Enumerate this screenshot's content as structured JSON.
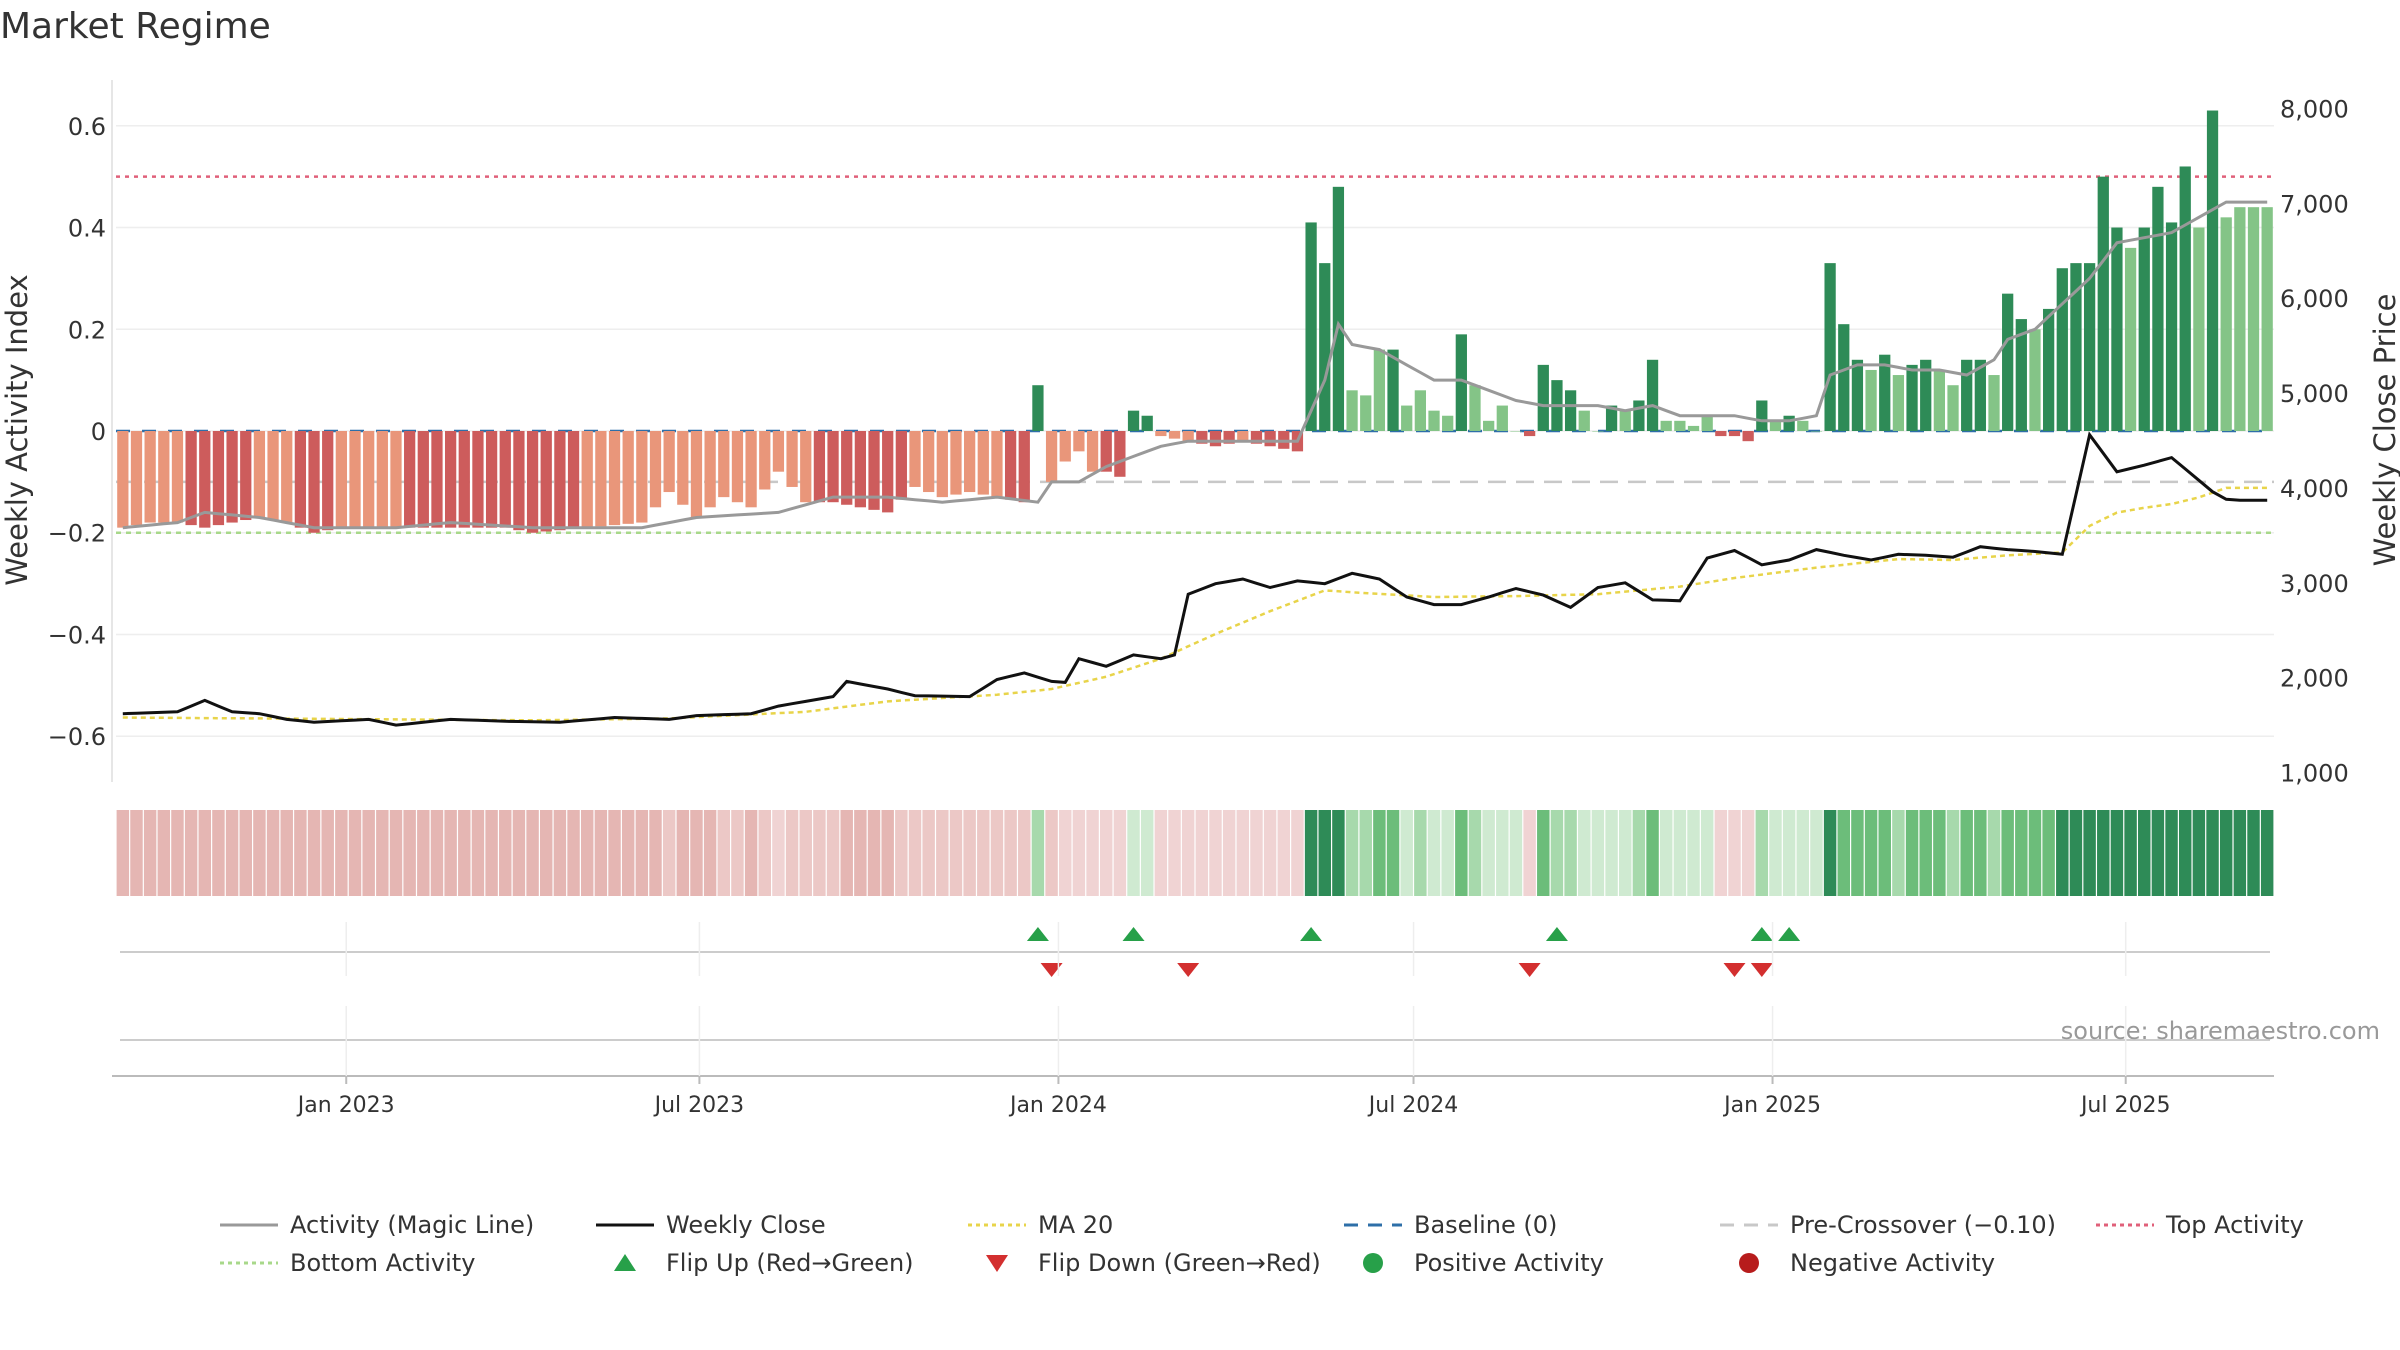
{
  "chart_data": {
    "type": "bar",
    "title": "Market Regime",
    "ylabel_left": "Weekly Activity Index",
    "ylabel_right": "Weekly Close Price",
    "source": "source: sharemaestro.com",
    "left_axis": {
      "ylim": [
        -0.69,
        0.69
      ],
      "ticks": [
        {
          "v": 0.6,
          "label": "0.6"
        },
        {
          "v": 0.4,
          "label": "0.4"
        },
        {
          "v": 0.2,
          "label": "0.2"
        },
        {
          "v": 0,
          "label": "0"
        },
        {
          "v": -0.2,
          "label": "−0.2"
        },
        {
          "v": -0.4,
          "label": "−0.4"
        },
        {
          "v": -0.6,
          "label": "−0.6"
        }
      ]
    },
    "right_axis": {
      "ylim": [
        900,
        8300
      ],
      "ticks": [
        {
          "v": 8000,
          "label": "8,000"
        },
        {
          "v": 7000,
          "label": "7,000"
        },
        {
          "v": 6000,
          "label": "6,000"
        },
        {
          "v": 5000,
          "label": "5,000"
        },
        {
          "v": 4000,
          "label": "4,000"
        },
        {
          "v": 3000,
          "label": "3,000"
        },
        {
          "v": 2000,
          "label": "2,000"
        },
        {
          "v": 1000,
          "label": "1,000"
        }
      ]
    },
    "x_range": [
      "2022-09-05",
      "2025-09-15"
    ],
    "x_ticks": [
      {
        "date": "2023-01-01",
        "label": "Jan 2023"
      },
      {
        "date": "2023-07-01",
        "label": "Jul 2023"
      },
      {
        "date": "2024-01-01",
        "label": "Jan 2024"
      },
      {
        "date": "2024-07-01",
        "label": "Jul 2024"
      },
      {
        "date": "2025-01-01",
        "label": "Jan 2025"
      },
      {
        "date": "2025-07-01",
        "label": "Jul 2025"
      }
    ],
    "reference_lines": [
      {
        "name": "Top Activity",
        "value": 0.5,
        "color": "#e0607a",
        "dash": "4 5"
      },
      {
        "name": "Pre-Crossover (−0.10)",
        "value": -0.1,
        "color": "#c8c8c8",
        "dash": "18 10"
      },
      {
        "name": "Bottom Activity",
        "value": -0.2,
        "color": "#a8d88a",
        "dash": "5 5"
      },
      {
        "name": "Baseline (0)",
        "value": 0,
        "color": "#2e6fa8",
        "dash": "14 12"
      }
    ],
    "colors": {
      "pos_strong": "#2e8b57",
      "pos_weak": "#84c487",
      "neg_strong": "#cd5c5c",
      "neg_weak": "#e9967a",
      "magic": "#999999",
      "close": "#111111",
      "ma": "#e8d44a",
      "flip_up": "#27a049",
      "flip_down": "#d32f2f"
    },
    "weeks": 158,
    "activity": {
      "keyframes": [
        [
          0,
          -0.19
        ],
        [
          2,
          -0.18
        ],
        [
          4,
          -0.18
        ],
        [
          6,
          -0.19
        ],
        [
          8,
          -0.18
        ],
        [
          10,
          -0.17
        ],
        [
          12,
          -0.18
        ],
        [
          14,
          -0.2
        ],
        [
          16,
          -0.19
        ],
        [
          20,
          -0.19
        ],
        [
          24,
          -0.19
        ],
        [
          28,
          -0.19
        ],
        [
          30,
          -0.2
        ],
        [
          34,
          -0.19
        ],
        [
          38,
          -0.18
        ],
        [
          40,
          -0.12
        ],
        [
          42,
          -0.17
        ],
        [
          44,
          -0.13
        ],
        [
          46,
          -0.15
        ],
        [
          48,
          -0.08
        ],
        [
          50,
          -0.14
        ],
        [
          52,
          -0.14
        ],
        [
          54,
          -0.15
        ],
        [
          56,
          -0.16
        ],
        [
          58,
          -0.11
        ],
        [
          60,
          -0.13
        ],
        [
          62,
          -0.12
        ],
        [
          64,
          -0.13
        ],
        [
          66,
          -0.14
        ],
        [
          67,
          0.09
        ],
        [
          68,
          -0.1
        ],
        [
          69,
          -0.06
        ],
        [
          70,
          -0.04
        ],
        [
          71,
          -0.08
        ],
        [
          72,
          -0.08
        ],
        [
          73,
          -0.09
        ],
        [
          74,
          0.04
        ],
        [
          75,
          0.03
        ],
        [
          76,
          -0.01
        ],
        [
          78,
          -0.02
        ],
        [
          80,
          -0.03
        ],
        [
          82,
          -0.02
        ],
        [
          84,
          -0.03
        ],
        [
          86,
          -0.04
        ],
        [
          87,
          0.41
        ],
        [
          88,
          0.33
        ],
        [
          89,
          0.48
        ],
        [
          90,
          0.08
        ],
        [
          91,
          0.07
        ],
        [
          92,
          0.16
        ],
        [
          93,
          0.16
        ],
        [
          94,
          0.05
        ],
        [
          95,
          0.08
        ],
        [
          96,
          0.04
        ],
        [
          97,
          0.03
        ],
        [
          98,
          0.19
        ],
        [
          99,
          0.09
        ],
        [
          100,
          0.02
        ],
        [
          101,
          0.05
        ],
        [
          102,
          0.0
        ],
        [
          103,
          -0.01
        ],
        [
          104,
          0.13
        ],
        [
          105,
          0.1
        ],
        [
          106,
          0.08
        ],
        [
          107,
          0.04
        ],
        [
          108,
          0.0
        ],
        [
          109,
          0.05
        ],
        [
          110,
          0.04
        ],
        [
          111,
          0.06
        ],
        [
          112,
          0.14
        ],
        [
          113,
          0.02
        ],
        [
          114,
          0.02
        ],
        [
          115,
          0.01
        ],
        [
          116,
          0.03
        ],
        [
          117,
          -0.01
        ],
        [
          118,
          -0.01
        ],
        [
          119,
          -0.02
        ],
        [
          120,
          0.06
        ],
        [
          121,
          0.02
        ],
        [
          122,
          0.03
        ],
        [
          123,
          0.02
        ],
        [
          124,
          0.0
        ],
        [
          125,
          0.33
        ],
        [
          126,
          0.21
        ],
        [
          127,
          0.14
        ],
        [
          128,
          0.12
        ],
        [
          129,
          0.15
        ],
        [
          130,
          0.11
        ],
        [
          131,
          0.13
        ],
        [
          132,
          0.14
        ],
        [
          133,
          0.12
        ],
        [
          134,
          0.09
        ],
        [
          135,
          0.14
        ],
        [
          136,
          0.14
        ],
        [
          137,
          0.11
        ],
        [
          138,
          0.27
        ],
        [
          139,
          0.22
        ],
        [
          140,
          0.2
        ],
        [
          141,
          0.24
        ],
        [
          142,
          0.32
        ],
        [
          143,
          0.33
        ],
        [
          144,
          0.33
        ],
        [
          145,
          0.5
        ],
        [
          146,
          0.4
        ],
        [
          147,
          0.36
        ],
        [
          148,
          0.4
        ],
        [
          149,
          0.48
        ],
        [
          150,
          0.41
        ],
        [
          151,
          0.52
        ],
        [
          152,
          0.4
        ],
        [
          153,
          0.63
        ],
        [
          154,
          0.42
        ],
        [
          155,
          0.44
        ]
      ]
    },
    "magic_line": {
      "keyframes": [
        [
          0,
          -0.19
        ],
        [
          4,
          -0.18
        ],
        [
          6,
          -0.16
        ],
        [
          10,
          -0.17
        ],
        [
          14,
          -0.19
        ],
        [
          20,
          -0.19
        ],
        [
          24,
          -0.18
        ],
        [
          30,
          -0.19
        ],
        [
          38,
          -0.19
        ],
        [
          42,
          -0.17
        ],
        [
          48,
          -0.16
        ],
        [
          52,
          -0.13
        ],
        [
          56,
          -0.13
        ],
        [
          60,
          -0.14
        ],
        [
          64,
          -0.13
        ],
        [
          67,
          -0.14
        ],
        [
          68,
          -0.1
        ],
        [
          70,
          -0.1
        ],
        [
          72,
          -0.07
        ],
        [
          74,
          -0.05
        ],
        [
          76,
          -0.03
        ],
        [
          78,
          -0.02
        ],
        [
          82,
          -0.02
        ],
        [
          84,
          -0.02
        ],
        [
          86,
          -0.02
        ],
        [
          88,
          0.1
        ],
        [
          89,
          0.21
        ],
        [
          90,
          0.17
        ],
        [
          92,
          0.16
        ],
        [
          94,
          0.13
        ],
        [
          96,
          0.1
        ],
        [
          98,
          0.1
        ],
        [
          100,
          0.08
        ],
        [
          102,
          0.06
        ],
        [
          104,
          0.05
        ],
        [
          106,
          0.05
        ],
        [
          108,
          0.05
        ],
        [
          110,
          0.04
        ],
        [
          112,
          0.05
        ],
        [
          114,
          0.03
        ],
        [
          116,
          0.03
        ],
        [
          118,
          0.03
        ],
        [
          120,
          0.02
        ],
        [
          122,
          0.02
        ],
        [
          124,
          0.03
        ],
        [
          125,
          0.11
        ],
        [
          127,
          0.13
        ],
        [
          129,
          0.13
        ],
        [
          131,
          0.12
        ],
        [
          133,
          0.12
        ],
        [
          135,
          0.11
        ],
        [
          137,
          0.14
        ],
        [
          138,
          0.18
        ],
        [
          140,
          0.2
        ],
        [
          142,
          0.25
        ],
        [
          144,
          0.3
        ],
        [
          146,
          0.37
        ],
        [
          148,
          0.38
        ],
        [
          150,
          0.39
        ],
        [
          152,
          0.42
        ],
        [
          154,
          0.45
        ],
        [
          155,
          0.45
        ]
      ]
    },
    "weekly_close": {
      "keyframes": [
        [
          0,
          1620
        ],
        [
          4,
          1640
        ],
        [
          6,
          1760
        ],
        [
          8,
          1640
        ],
        [
          10,
          1620
        ],
        [
          12,
          1560
        ],
        [
          14,
          1530
        ],
        [
          18,
          1560
        ],
        [
          20,
          1500
        ],
        [
          24,
          1560
        ],
        [
          28,
          1540
        ],
        [
          32,
          1530
        ],
        [
          36,
          1580
        ],
        [
          40,
          1560
        ],
        [
          42,
          1600
        ],
        [
          46,
          1620
        ],
        [
          48,
          1700
        ],
        [
          52,
          1800
        ],
        [
          53,
          1960
        ],
        [
          56,
          1880
        ],
        [
          58,
          1810
        ],
        [
          62,
          1800
        ],
        [
          64,
          1980
        ],
        [
          66,
          2050
        ],
        [
          68,
          1960
        ],
        [
          69,
          1950
        ],
        [
          70,
          2200
        ],
        [
          72,
          2120
        ],
        [
          74,
          2240
        ],
        [
          76,
          2200
        ],
        [
          77,
          2240
        ],
        [
          78,
          2880
        ],
        [
          80,
          2990
        ],
        [
          82,
          3040
        ],
        [
          84,
          2950
        ],
        [
          86,
          3020
        ],
        [
          88,
          2990
        ],
        [
          90,
          3100
        ],
        [
          92,
          3040
        ],
        [
          94,
          2850
        ],
        [
          96,
          2770
        ],
        [
          98,
          2770
        ],
        [
          100,
          2850
        ],
        [
          102,
          2940
        ],
        [
          104,
          2870
        ],
        [
          106,
          2740
        ],
        [
          108,
          2950
        ],
        [
          110,
          3000
        ],
        [
          112,
          2820
        ],
        [
          114,
          2810
        ],
        [
          116,
          3260
        ],
        [
          118,
          3340
        ],
        [
          120,
          3190
        ],
        [
          122,
          3240
        ],
        [
          124,
          3350
        ],
        [
          126,
          3290
        ],
        [
          128,
          3240
        ],
        [
          130,
          3300
        ],
        [
          132,
          3290
        ],
        [
          134,
          3270
        ],
        [
          136,
          3380
        ],
        [
          138,
          3350
        ],
        [
          140,
          3330
        ],
        [
          142,
          3300
        ],
        [
          144,
          4560
        ],
        [
          146,
          4170
        ],
        [
          148,
          4240
        ],
        [
          150,
          4320
        ],
        [
          152,
          4080
        ],
        [
          153,
          3960
        ],
        [
          154,
          3880
        ],
        [
          155,
          3870
        ]
      ]
    },
    "ma20": {
      "keyframes": [
        [
          0,
          1580
        ],
        [
          10,
          1570
        ],
        [
          20,
          1560
        ],
        [
          30,
          1550
        ],
        [
          40,
          1570
        ],
        [
          50,
          1640
        ],
        [
          56,
          1750
        ],
        [
          64,
          1820
        ],
        [
          68,
          1880
        ],
        [
          72,
          2010
        ],
        [
          76,
          2200
        ],
        [
          80,
          2460
        ],
        [
          84,
          2700
        ],
        [
          88,
          2920
        ],
        [
          90,
          2900
        ],
        [
          96,
          2850
        ],
        [
          102,
          2860
        ],
        [
          108,
          2880
        ],
        [
          114,
          2960
        ],
        [
          118,
          3050
        ],
        [
          124,
          3160
        ],
        [
          130,
          3250
        ],
        [
          134,
          3240
        ],
        [
          138,
          3290
        ],
        [
          142,
          3320
        ],
        [
          144,
          3600
        ],
        [
          146,
          3740
        ],
        [
          148,
          3790
        ],
        [
          150,
          3830
        ],
        [
          152,
          3900
        ],
        [
          154,
          4000
        ],
        [
          155,
          4000
        ]
      ]
    },
    "flip_up_weeks": [
      67,
      74,
      87,
      105,
      120,
      122
    ],
    "flip_down_weeks": [
      68,
      78,
      103,
      118,
      120
    ],
    "legend": [
      {
        "label": "Activity (Magic Line)",
        "kind": "line",
        "color": "#999999",
        "dash": ""
      },
      {
        "label": "Weekly Close",
        "kind": "line",
        "color": "#111111",
        "dash": ""
      },
      {
        "label": "MA 20",
        "kind": "line",
        "color": "#e8d44a",
        "dash": "4 4"
      },
      {
        "label": "Baseline (0)",
        "kind": "line",
        "color": "#2e6fa8",
        "dash": "14 10"
      },
      {
        "label": "Pre-Crossover (−0.10)",
        "kind": "line",
        "color": "#c8c8c8",
        "dash": "14 10"
      },
      {
        "label": "Top Activity",
        "kind": "line",
        "color": "#e0607a",
        "dash": "4 4"
      },
      {
        "label": "Bottom Activity",
        "kind": "line",
        "color": "#a8d88a",
        "dash": "4 4"
      },
      {
        "label": "Flip Up (Red→Green)",
        "kind": "tri-up",
        "color": "#27a049"
      },
      {
        "label": "Flip Down (Green→Red)",
        "kind": "tri-down",
        "color": "#d32f2f"
      },
      {
        "label": "Positive Activity",
        "kind": "dot",
        "color": "#27a049"
      },
      {
        "label": "Negative Activity",
        "kind": "dot",
        "color": "#b71c1c"
      }
    ]
  }
}
